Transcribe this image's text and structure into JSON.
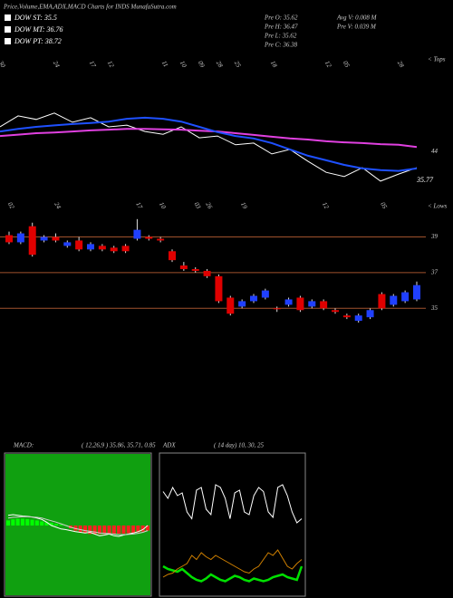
{
  "header": {
    "title": "Price,Volume,EMA,ADX,MACD Charts for INDS MunafaSutra.com"
  },
  "legend": [
    "DOW ST: 35.5",
    "DOW MT: 36.76",
    "DOW PT: 38.72"
  ],
  "info": [
    "Pre  O: 35.62",
    "Avg  V: 0.008  M",
    "Pre  H: 36.47",
    "Pre  V: 0.039  M",
    "Pre  L: 35.62",
    "Pre  C: 36.38"
  ],
  "chart_data": [
    {
      "type": "line",
      "label_tops": "< Tops",
      "label_lows": "< Lows",
      "last_price": 35.77,
      "categories": [
        "30",
        null,
        null,
        "24",
        null,
        "17",
        "12",
        null,
        null,
        "11",
        "10",
        "09",
        "28",
        "25",
        null,
        "18",
        null,
        null,
        "12",
        "05",
        null,
        null,
        "28",
        null
      ],
      "ylim": [
        33,
        60
      ],
      "yticks": [
        44
      ],
      "series": [
        {
          "color": "#ffffff",
          "values": [
            51.0,
            54.1,
            53.1,
            54.9,
            52.3,
            53.6,
            51.0,
            51.5,
            49.7,
            48.9,
            51.0,
            47.9,
            48.4,
            45.9,
            46.4,
            43.3,
            44.6,
            41.2,
            38.1,
            36.9,
            39.4,
            35.6,
            37.6,
            39.4
          ]
        },
        {
          "color": "#e040e0",
          "values": [
            48.4,
            48.8,
            49.2,
            49.4,
            49.7,
            50.0,
            50.2,
            50.4,
            50.4,
            50.3,
            50.2,
            49.9,
            49.7,
            49.2,
            48.7,
            48.2,
            47.7,
            47.4,
            46.9,
            46.6,
            46.4,
            46.1,
            45.9,
            45.3
          ]
        },
        {
          "color": "#1e50ff",
          "values": [
            49.7,
            50.4,
            51.0,
            51.4,
            51.8,
            52.1,
            52.5,
            53.3,
            53.6,
            53.3,
            52.5,
            51.0,
            49.5,
            48.4,
            47.7,
            46.4,
            44.6,
            42.8,
            41.5,
            40.2,
            39.2,
            38.7,
            38.5,
            39.2
          ]
        }
      ]
    },
    {
      "type": "candlestick",
      "categories": [
        "02",
        null,
        null,
        null,
        "24",
        null,
        null,
        null,
        null,
        null,
        null,
        "17",
        null,
        "10",
        null,
        null,
        "03",
        "26",
        null,
        null,
        "19",
        null,
        null,
        null,
        null,
        null,
        null,
        "12",
        null,
        null,
        null,
        null,
        "05",
        null,
        null,
        null
      ],
      "ylim": [
        34,
        40.6
      ],
      "yticks": [
        35,
        37,
        39
      ],
      "grid": true,
      "grid_color": "#a0522d",
      "up_color": "#2040ff",
      "down_color": "#e00000",
      "open": [
        39.1,
        38.7,
        39.6,
        38.8,
        39.0,
        38.5,
        38.8,
        38.3,
        38.5,
        38.4,
        38.5,
        38.9,
        39.0,
        38.9,
        38.2,
        37.4,
        37.2,
        37.1,
        36.8,
        35.6,
        35.1,
        35.4,
        35.6,
        35.0,
        35.2,
        35.6,
        35.1,
        35.4,
        34.9,
        34.6,
        34.3,
        34.5,
        35.8,
        35.2,
        35.4,
        35.5
      ],
      "high": [
        39.3,
        39.3,
        39.8,
        39.1,
        39.2,
        38.8,
        39.0,
        38.7,
        38.6,
        38.5,
        38.6,
        40.0,
        39.1,
        39.0,
        38.3,
        37.6,
        37.3,
        37.2,
        36.9,
        35.7,
        35.5,
        35.8,
        36.1,
        35.1,
        35.6,
        35.7,
        35.5,
        35.5,
        35.0,
        34.7,
        34.7,
        35.0,
        35.9,
        35.8,
        36.0,
        36.5
      ],
      "low": [
        38.6,
        38.6,
        37.9,
        38.7,
        38.7,
        38.4,
        38.2,
        38.2,
        38.2,
        38.1,
        38.1,
        38.8,
        38.8,
        38.7,
        37.6,
        37.1,
        37.0,
        36.7,
        35.3,
        34.6,
        35.0,
        35.3,
        35.5,
        34.8,
        35.1,
        34.8,
        35.0,
        34.9,
        34.7,
        34.4,
        34.2,
        34.4,
        34.9,
        35.1,
        35.3,
        35.4
      ],
      "close": [
        38.7,
        39.2,
        38.0,
        39.0,
        38.8,
        38.7,
        38.3,
        38.6,
        38.3,
        38.2,
        38.2,
        39.4,
        38.9,
        38.8,
        37.7,
        37.2,
        37.1,
        36.8,
        35.4,
        34.7,
        35.4,
        35.7,
        36.0,
        34.95,
        35.5,
        34.9,
        35.4,
        35.0,
        34.8,
        34.5,
        34.6,
        34.9,
        35.0,
        35.7,
        35.9,
        36.3
      ]
    },
    {
      "type": "macd",
      "title": "MACD:",
      "subtitle": "( 12,26,9 ) 35.86,  35.71,  0.85",
      "ylim": [
        -2,
        2
      ],
      "background": "#10a010",
      "bar_up_color": "#00ff00",
      "bar_down_color": "#ff2020",
      "histogram": [
        0.15,
        0.18,
        0.2,
        0.2,
        0.19,
        0.17,
        0.15,
        0.12,
        0.1,
        0.08,
        0.05,
        0.03,
        0.01,
        -0.08,
        -0.15,
        -0.2,
        -0.22,
        -0.25,
        -0.25,
        -0.25,
        -0.25,
        -0.25,
        -0.25,
        -0.24,
        -0.24,
        -0.23,
        -0.22,
        -0.2,
        -0.18,
        -0.15
      ],
      "series": [
        {
          "color": "#ffffff",
          "values": [
            0.3,
            0.32,
            0.3,
            0.28,
            0.27,
            0.25,
            0.22,
            0.18,
            0.1,
            0.0,
            -0.05,
            -0.1,
            -0.12,
            -0.15,
            -0.18,
            -0.2,
            -0.22,
            -0.2,
            -0.25,
            -0.3,
            -0.28,
            -0.25,
            -0.3,
            -0.32,
            -0.28,
            -0.25,
            -0.22,
            -0.18,
            -0.12,
            0.0
          ]
        },
        {
          "color": "#d0d0d0",
          "values": [
            0.22,
            0.24,
            0.25,
            0.26,
            0.26,
            0.25,
            0.24,
            0.22,
            0.18,
            0.14,
            0.1,
            0.05,
            0.0,
            -0.05,
            -0.09,
            -0.12,
            -0.15,
            -0.17,
            -0.19,
            -0.22,
            -0.23,
            -0.24,
            -0.25,
            -0.27,
            -0.27,
            -0.26,
            -0.25,
            -0.23,
            -0.2,
            -0.15
          ]
        }
      ]
    },
    {
      "type": "adx",
      "title": "ADX",
      "subtitle": "( 14  day) 10,  30,  25",
      "ylim": [
        0,
        100
      ],
      "background": "#000000",
      "series": [
        {
          "color": "#ffffff",
          "values": [
            75,
            70,
            78,
            72,
            74,
            60,
            55,
            76,
            78,
            62,
            58,
            80,
            78,
            70,
            55,
            74,
            76,
            60,
            58,
            72,
            78,
            75,
            60,
            56,
            78,
            80,
            72,
            60,
            52,
            55
          ]
        },
        {
          "color": "#00e000",
          "values": [
            20,
            18,
            17,
            16,
            18,
            15,
            12,
            10,
            9,
            11,
            14,
            12,
            10,
            9,
            11,
            13,
            12,
            10,
            9,
            11,
            10,
            9,
            10,
            12,
            13,
            14,
            12,
            11,
            10,
            20
          ]
        },
        {
          "color": "#d08000",
          "values": [
            12,
            14,
            15,
            18,
            20,
            22,
            28,
            25,
            30,
            27,
            25,
            28,
            26,
            24,
            22,
            20,
            18,
            16,
            15,
            18,
            20,
            25,
            30,
            28,
            32,
            26,
            20,
            18,
            22,
            25
          ]
        }
      ]
    }
  ]
}
